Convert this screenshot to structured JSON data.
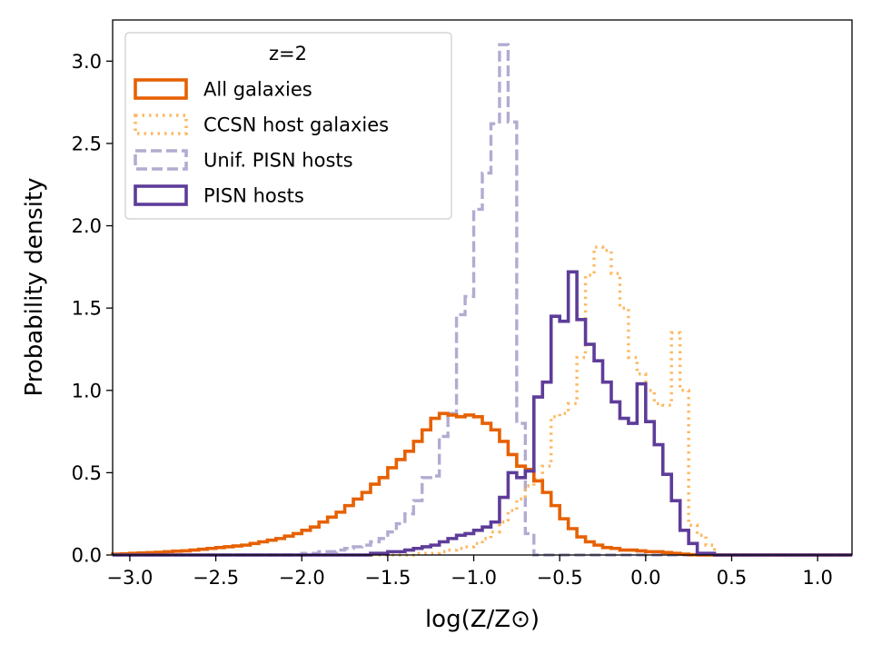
{
  "chart_data": {
    "type": "histogram-step",
    "xlabel": "log(Z/Z⊙)",
    "ylabel": "Probability density",
    "xlim": [
      -3.1,
      1.2
    ],
    "ylim": [
      0,
      3.25
    ],
    "xticks": [
      -3.0,
      -2.5,
      -2.0,
      -1.5,
      -1.0,
      -0.5,
      0.0,
      0.5,
      1.0
    ],
    "xtick_labels": [
      "−3.0",
      "−2.5",
      "−2.0",
      "−1.5",
      "−1.0",
      "−0.5",
      "0.0",
      "0.5",
      "1.0"
    ],
    "yticks": [
      0.0,
      0.5,
      1.0,
      1.5,
      2.0,
      2.5,
      3.0
    ],
    "ytick_labels": [
      "0.0",
      "0.5",
      "1.0",
      "1.5",
      "2.0",
      "2.5",
      "3.0"
    ],
    "bin_start": -3.1,
    "bin_width": 0.05,
    "legend": {
      "title": "z=2",
      "location": "upper left",
      "entries": [
        "All galaxies",
        "CCSN host galaxies",
        "Unif. PISN hosts",
        "PISN hosts"
      ]
    },
    "series": [
      {
        "name": "Unif. PISN hosts",
        "color": "#b2abd2",
        "style": "dashed",
        "values": [
          0,
          0,
          0,
          0,
          0,
          0,
          0,
          0,
          0,
          0,
          0,
          0,
          0,
          0,
          0,
          0,
          0,
          0,
          0,
          0,
          0,
          0,
          0.01,
          0.01,
          0.02,
          0.02,
          0.03,
          0.04,
          0.05,
          0.06,
          0.08,
          0.1,
          0.14,
          0.19,
          0.25,
          0.33,
          0.47,
          0.48,
          0.72,
          0.86,
          1.46,
          1.57,
          2.1,
          2.32,
          2.62,
          3.1,
          2.63,
          0.8,
          0.13,
          0,
          0,
          0,
          0,
          0,
          0,
          0,
          0,
          0,
          0,
          0,
          0,
          0,
          0,
          0,
          0,
          0,
          0,
          0,
          0,
          0,
          0,
          0,
          0,
          0,
          0,
          0,
          0,
          0,
          0,
          0,
          0,
          0,
          0,
          0,
          0,
          0
        ]
      },
      {
        "name": "CCSN host galaxies",
        "color": "#fdb863",
        "style": "dotted",
        "values": [
          0,
          0,
          0,
          0,
          0,
          0,
          0,
          0,
          0,
          0,
          0,
          0,
          0,
          0,
          0,
          0,
          0,
          0,
          0,
          0,
          0,
          0,
          0,
          0,
          0,
          0,
          0,
          0,
          0,
          0,
          0,
          0,
          0,
          0,
          0,
          0.01,
          0.01,
          0.01,
          0.02,
          0.03,
          0.04,
          0.05,
          0.07,
          0.1,
          0.14,
          0.2,
          0.27,
          0.34,
          0.42,
          0.46,
          0.54,
          0.84,
          0.86,
          0.92,
          1.2,
          1.7,
          1.87,
          1.85,
          1.71,
          1.5,
          1.2,
          1.1,
          1.0,
          0.92,
          0.91,
          1.35,
          1.0,
          0.18,
          0.12,
          0.06,
          0,
          0,
          0,
          0,
          0,
          0,
          0,
          0,
          0,
          0,
          0,
          0,
          0,
          0,
          0,
          0
        ]
      },
      {
        "name": "All galaxies",
        "color": "#e66101",
        "style": "solid",
        "values": [
          0.005,
          0.007,
          0.01,
          0.012,
          0.014,
          0.016,
          0.02,
          0.023,
          0.025,
          0.03,
          0.035,
          0.04,
          0.045,
          0.05,
          0.055,
          0.06,
          0.07,
          0.08,
          0.09,
          0.1,
          0.115,
          0.13,
          0.15,
          0.17,
          0.2,
          0.23,
          0.26,
          0.3,
          0.34,
          0.38,
          0.43,
          0.47,
          0.53,
          0.58,
          0.63,
          0.69,
          0.76,
          0.83,
          0.86,
          0.85,
          0.84,
          0.85,
          0.84,
          0.8,
          0.76,
          0.69,
          0.61,
          0.54,
          0.52,
          0.45,
          0.38,
          0.3,
          0.22,
          0.16,
          0.11,
          0.08,
          0.06,
          0.045,
          0.04,
          0.03,
          0.03,
          0.025,
          0.02,
          0.02,
          0.015,
          0.01,
          0.005,
          0.002,
          0,
          0,
          0,
          0,
          0,
          0,
          0,
          0,
          0,
          0,
          0,
          0,
          0,
          0,
          0,
          0,
          0,
          0
        ]
      },
      {
        "name": "PISN hosts",
        "color": "#5e3c99",
        "style": "solid",
        "values": [
          0,
          0,
          0,
          0,
          0,
          0,
          0,
          0,
          0,
          0,
          0,
          0,
          0,
          0,
          0,
          0,
          0,
          0,
          0,
          0,
          0,
          0,
          0,
          0,
          0,
          0,
          0,
          0,
          0,
          0,
          0.01,
          0.01,
          0.02,
          0.02,
          0.03,
          0.04,
          0.05,
          0.06,
          0.08,
          0.1,
          0.12,
          0.13,
          0.15,
          0.17,
          0.2,
          0.35,
          0.5,
          0.47,
          0.51,
          0.96,
          1.05,
          1.45,
          1.42,
          1.72,
          1.43,
          1.28,
          1.18,
          1.05,
          0.93,
          0.83,
          0.8,
          1.04,
          0.81,
          0.67,
          0.49,
          0.33,
          0.15,
          0.07,
          0.01,
          0.01,
          0,
          0,
          0,
          0,
          0,
          0,
          0,
          0,
          0,
          0,
          0,
          0,
          0,
          0,
          0,
          0
        ]
      }
    ]
  }
}
